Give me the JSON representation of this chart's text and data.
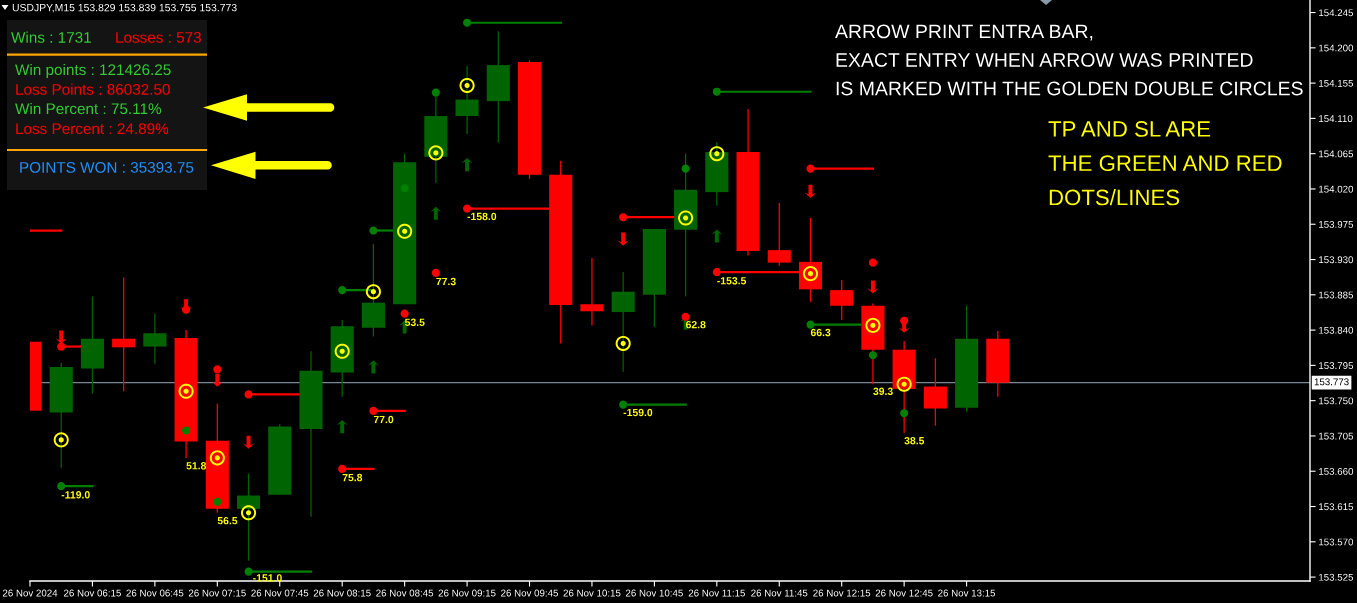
{
  "chart_data": [
    {
      "type": "candlestick",
      "title": "USDJPY,M15 153.829 153.839 153.755 153.773",
      "x": [
        "2024-11-26T05:45",
        "2024-11-26T06:00",
        "2024-11-26T06:15",
        "2024-11-26T06:30",
        "2024-11-26T06:45",
        "2024-11-26T07:00",
        "2024-11-26T07:15",
        "2024-11-26T07:30",
        "2024-11-26T07:45",
        "2024-11-26T08:00",
        "2024-11-26T08:15",
        "2024-11-26T08:30",
        "2024-11-26T08:45",
        "2024-11-26T09:00",
        "2024-11-26T09:15",
        "2024-11-26T09:30",
        "2024-11-26T09:45",
        "2024-11-26T10:00",
        "2024-11-26T10:15",
        "2024-11-26T10:30",
        "2024-11-26T10:45",
        "2024-11-26T11:00",
        "2024-11-26T11:15",
        "2024-11-26T11:30",
        "2024-11-26T11:45",
        "2024-11-26T12:00",
        "2024-11-26T12:15",
        "2024-11-26T12:30",
        "2024-11-26T12:45",
        "2024-11-26T13:00",
        "2024-11-26T13:15",
        "2024-11-26T13:30"
      ],
      "ohlc": [
        [
          153.825,
          153.825,
          153.737,
          153.737
        ],
        [
          153.735,
          153.798,
          153.664,
          153.793
        ],
        [
          153.791,
          153.883,
          153.759,
          153.829
        ],
        [
          153.829,
          153.907,
          153.762,
          153.818
        ],
        [
          153.819,
          153.861,
          153.797,
          153.836
        ],
        [
          153.83,
          153.84,
          153.677,
          153.698
        ],
        [
          153.699,
          153.746,
          153.607,
          153.612
        ],
        [
          153.612,
          153.657,
          153.546,
          153.629
        ],
        [
          153.63,
          153.72,
          153.63,
          153.717
        ],
        [
          153.714,
          153.813,
          153.602,
          153.788
        ],
        [
          153.786,
          153.853,
          153.755,
          153.845
        ],
        [
          153.843,
          153.95,
          153.832,
          153.875
        ],
        [
          153.873,
          154.065,
          153.873,
          154.054
        ],
        [
          154.061,
          154.138,
          154.028,
          154.113
        ],
        [
          154.113,
          154.177,
          154.09,
          154.134
        ],
        [
          154.132,
          154.221,
          154.079,
          154.178
        ],
        [
          154.182,
          154.184,
          154.033,
          154.038
        ],
        [
          154.038,
          154.056,
          153.823,
          153.872
        ],
        [
          153.873,
          153.932,
          153.846,
          153.864
        ],
        [
          153.863,
          153.914,
          153.787,
          153.889
        ],
        [
          153.885,
          153.969,
          153.844,
          153.969
        ],
        [
          153.968,
          154.065,
          153.883,
          154.019
        ],
        [
          154.016,
          154.08,
          153.999,
          154.067
        ],
        [
          154.067,
          154.122,
          153.935,
          153.941
        ],
        [
          153.942,
          154.002,
          153.922,
          153.926
        ],
        [
          153.927,
          153.983,
          153.876,
          153.892
        ],
        [
          153.891,
          153.904,
          153.853,
          153.871
        ],
        [
          153.871,
          153.874,
          153.771,
          153.815
        ],
        [
          153.815,
          153.826,
          153.709,
          153.765
        ],
        [
          153.768,
          153.804,
          153.718,
          153.74
        ],
        [
          153.741,
          153.871,
          153.736,
          153.829
        ],
        [
          153.829,
          153.839,
          153.755,
          153.773
        ]
      ],
      "colors": [
        "#ff0000",
        "#006400",
        "#006400",
        "#ff0000",
        "#006400",
        "#ff0000",
        "#ff0000",
        "#006400",
        "#006400",
        "#006400",
        "#006400",
        "#006400",
        "#006400",
        "#006400",
        "#006400",
        "#006400",
        "#ff0000",
        "#ff0000",
        "#ff0000",
        "#006400",
        "#006400",
        "#006400",
        "#006400",
        "#ff0000",
        "#ff0000",
        "#ff0000",
        "#ff0000",
        "#ff0000",
        "#ff0000",
        "#ff0000",
        "#006400",
        "#ff0000"
      ],
      "series": [
        {
          "type": "scatter",
          "marker": "circle",
          "color": "#ffff00",
          "x": [
            "2024-11-26T06:00",
            "2024-11-26T07:00",
            "2024-11-26T07:15",
            "2024-11-26T07:30",
            "2024-11-26T08:15",
            "2024-11-26T08:30",
            "2024-11-26T08:45",
            "2024-11-26T09:00",
            "2024-11-26T09:15",
            "2024-11-26T10:30",
            "2024-11-26T11:00",
            "2024-11-26T11:15",
            "2024-11-26T12:00",
            "2024-11-26T12:30",
            "2024-11-26T12:45"
          ],
          "values": [
            153.7,
            153.762,
            153.677,
            153.607,
            153.813,
            153.889,
            153.966,
            154.066,
            154.152,
            153.823,
            153.983,
            154.065,
            153.912,
            153.846,
            153.771
          ]
        },
        {
          "type": "scatter",
          "marker": "triangle",
          "color": "#ff0000",
          "x": [
            "2024-11-26T06:00",
            "2024-11-26T07:00",
            "2024-11-26T07:15",
            "2024-11-26T07:30",
            "2024-11-26T10:30",
            "2024-11-26T12:00",
            "2024-11-26T12:30",
            "2024-11-26T12:45"
          ],
          "values": [
            153.831,
            153.871,
            153.776,
            153.697,
            153.956,
            154.017,
            153.895,
            153.845
          ]
        },
        {
          "type": "scatter",
          "marker": "triangle",
          "color": "#006400",
          "x": [
            "2024-11-26T08:15",
            "2024-11-26T08:30",
            "2024-11-26T08:45",
            "2024-11-26T09:00",
            "2024-11-26T09:15",
            "2024-11-26T11:00",
            "2024-11-26T11:15"
          ],
          "values": [
            153.717,
            153.793,
            153.844,
            153.989,
            154.051,
            153.849,
            153.96
          ]
        },
        {
          "type": "scatter",
          "marker": "circle",
          "color": "#008000",
          "x": [
            "2024-11-26T06:00",
            "2024-11-26T07:00",
            "2024-11-26T07:15",
            "2024-11-26T07:30",
            "2024-11-26T08:15",
            "2024-11-26T08:30",
            "2024-11-26T08:45",
            "2024-11-26T09:00",
            "2024-11-26T09:15",
            "2024-11-26T10:30",
            "2024-11-26T11:00",
            "2024-11-26T11:15",
            "2024-11-26T12:00",
            "2024-11-26T12:30",
            "2024-11-26T12:45"
          ],
          "values": [
            153.641,
            153.712,
            153.621,
            153.532,
            153.891,
            153.967,
            154.021,
            154.143,
            154.232,
            153.745,
            154.046,
            154.144,
            153.847,
            153.808,
            153.734
          ]
        },
        {
          "type": "scatter",
          "marker": "circle",
          "color": "#ff0000",
          "x": [
            "2024-11-26T06:00",
            "2024-11-26T07:00",
            "2024-11-26T07:15",
            "2024-11-26T07:30",
            "2024-11-26T08:15",
            "2024-11-26T08:30",
            "2024-11-26T08:45",
            "2024-11-26T09:00",
            "2024-11-26T09:15",
            "2024-11-26T10:30",
            "2024-11-26T11:00",
            "2024-11-26T11:15",
            "2024-11-26T12:00",
            "2024-11-26T12:30",
            "2024-11-26T12:45"
          ],
          "values": [
            153.819,
            153.866,
            153.79,
            153.758,
            153.663,
            153.737,
            153.861,
            153.913,
            153.995,
            153.984,
            153.857,
            153.914,
            154.046,
            153.926,
            153.852
          ]
        },
        {
          "type": "line",
          "color": "#008000",
          "x": [
            "2024-11-26T06:00",
            "2024-11-26T06:15"
          ],
          "values": [
            153.641,
            153.641
          ]
        },
        {
          "type": "line",
          "color": "#008000",
          "x": [
            "2024-11-26T07:30",
            "2024-11-26T08:00"
          ],
          "values": [
            153.532,
            153.532
          ]
        },
        {
          "type": "line",
          "color": "#008000",
          "x": [
            "2024-11-26T08:15",
            "2024-11-26T08:30"
          ],
          "values": [
            153.891,
            153.891
          ]
        },
        {
          "type": "line",
          "color": "#008000",
          "x": [
            "2024-11-26T08:30",
            "2024-11-26T08:39"
          ],
          "values": [
            153.967,
            153.967
          ]
        },
        {
          "type": "line",
          "color": "#008000",
          "x": [
            "2024-11-26T09:15",
            "2024-11-26T10:00"
          ],
          "values": [
            154.232,
            154.232
          ]
        },
        {
          "type": "line",
          "color": "#008000",
          "x": [
            "2024-11-26T10:30",
            "2024-11-26T11:00"
          ],
          "values": [
            153.745,
            153.745
          ]
        },
        {
          "type": "line",
          "color": "#008000",
          "x": [
            "2024-11-26T11:15",
            "2024-11-26T12:00"
          ],
          "values": [
            154.144,
            154.144
          ]
        },
        {
          "type": "line",
          "color": "#008000",
          "x": [
            "2024-11-26T12:00",
            "2024-11-26T12:24"
          ],
          "values": [
            153.847,
            153.847
          ]
        },
        {
          "type": "line",
          "color": "#ff0000",
          "x": [
            "2024-11-26T05:45",
            "2024-11-26T06:00"
          ],
          "values": [
            153.967,
            153.967
          ]
        },
        {
          "type": "line",
          "color": "#ff0000",
          "x": [
            "2024-11-26T06:00",
            "2024-11-26T06:09"
          ],
          "values": [
            153.819,
            153.819
          ]
        },
        {
          "type": "line",
          "color": "#ff0000",
          "x": [
            "2024-11-26T07:30",
            "2024-11-26T07:54"
          ],
          "values": [
            153.758,
            153.758
          ]
        },
        {
          "type": "line",
          "color": "#ff0000",
          "x": [
            "2024-11-26T08:15",
            "2024-11-26T08:30"
          ],
          "values": [
            153.663,
            153.663
          ]
        },
        {
          "type": "line",
          "color": "#ff0000",
          "x": [
            "2024-11-26T08:30",
            "2024-11-26T08:45"
          ],
          "values": [
            153.737,
            153.737
          ]
        },
        {
          "type": "line",
          "color": "#ff0000",
          "x": [
            "2024-11-26T09:15",
            "2024-11-26T09:54"
          ],
          "values": [
            153.995,
            153.995
          ]
        },
        {
          "type": "line",
          "color": "#ff0000",
          "x": [
            "2024-11-26T10:30",
            "2024-11-26T10:54"
          ],
          "values": [
            153.984,
            153.984
          ]
        },
        {
          "type": "line",
          "color": "#ff0000",
          "x": [
            "2024-11-26T11:15",
            "2024-11-26T11:54"
          ],
          "values": [
            153.914,
            153.914
          ]
        },
        {
          "type": "line",
          "color": "#ff0000",
          "x": [
            "2024-11-26T12:00",
            "2024-11-26T12:30"
          ],
          "values": [
            154.046,
            154.046
          ]
        }
      ],
      "xlim": [
        "2024-11-26T05:45",
        "2024-11-26T16:00"
      ],
      "xticks": [
        {
          "value": "2024-11-26T05:45",
          "label": "26 Nov 2024"
        },
        {
          "value": "2024-11-26T06:15",
          "label": "26 Nov 06:15"
        },
        {
          "value": "2024-11-26T06:45",
          "label": "26 Nov 06:45"
        },
        {
          "value": "2024-11-26T07:15",
          "label": "26 Nov 07:15"
        },
        {
          "value": "2024-11-26T07:45",
          "label": "26 Nov 07:45"
        },
        {
          "value": "2024-11-26T08:15",
          "label": "26 Nov 08:15"
        },
        {
          "value": "2024-11-26T08:45",
          "label": "26 Nov 08:45"
        },
        {
          "value": "2024-11-26T09:15",
          "label": "26 Nov 09:15"
        },
        {
          "value": "2024-11-26T09:45",
          "label": "26 Nov 09:45"
        },
        {
          "value": "2024-11-26T10:15",
          "label": "26 Nov 10:15"
        },
        {
          "value": "2024-11-26T10:45",
          "label": "26 Nov 10:45"
        },
        {
          "value": "2024-11-26T11:15",
          "label": "26 Nov 11:15"
        },
        {
          "value": "2024-11-26T11:45",
          "label": "26 Nov 11:45"
        },
        {
          "value": "2024-11-26T12:15",
          "label": "26 Nov 12:15"
        },
        {
          "value": "2024-11-26T12:45",
          "label": "26 Nov 12:45"
        },
        {
          "value": "2024-11-26T13:15",
          "label": "26 Nov 13:15"
        }
      ],
      "ylim": [
        153.52,
        154.261
      ],
      "yticks": [
        154.245,
        {
          "value": 154.2,
          "label": "154.200"
        },
        154.155,
        {
          "value": 154.11,
          "label": "154.110"
        },
        154.065,
        {
          "value": 154.02,
          "label": "154.020"
        },
        153.975,
        {
          "value": 153.93,
          "label": "153.930"
        },
        153.885,
        {
          "value": 153.84,
          "label": "153.840"
        },
        153.795,
        {
          "value": 153.75,
          "label": "153.750"
        },
        153.705,
        {
          "value": 153.66,
          "label": "153.660"
        },
        153.615,
        {
          "value": 153.57,
          "label": "153.570"
        },
        153.525
      ],
      "ref_lines": [
        {
          "axis": "y",
          "value": 153.773,
          "label": "153.773",
          "color": "#778899"
        }
      ],
      "annotations": [
        "ARROW PRINT ENTRA BAR,\nEXACT ENTRY WHEN ARROW WAS PRINTED\nIS MARKED WITH THE GOLDEN DOUBLE CIRCLES",
        "TP AND SL ARE\nTHE GREEN AND RED\nDOTS/LINES",
        {
          "text": "-119.0",
          "x": "2024-11-26T06:00",
          "y": 153.635
        },
        {
          "text": "51.8",
          "x": "2024-11-26T07:00",
          "y": 153.672
        },
        {
          "text": "56.5",
          "x": "2024-11-26T07:15",
          "y": 153.602
        },
        {
          "text": "-151.0",
          "x": "2024-11-26T07:32",
          "y": 153.529
        },
        {
          "text": "75.8",
          "x": "2024-11-26T08:15",
          "y": 153.657
        },
        {
          "text": "77.0",
          "x": "2024-11-26T08:30",
          "y": 153.731
        },
        {
          "text": "53.5",
          "x": "2024-11-26T08:45",
          "y": 153.855
        },
        {
          "text": "77.3",
          "x": "2024-11-26T09:00",
          "y": 153.907
        },
        {
          "text": "-158.0",
          "x": "2024-11-26T09:15",
          "y": 153.99
        },
        {
          "text": "-159.0",
          "x": "2024-11-26T10:30",
          "y": 153.74
        },
        {
          "text": "62.8",
          "x": "2024-11-26T11:00",
          "y": 153.852
        },
        {
          "text": "-153.5",
          "x": "2024-11-26T11:15",
          "y": 153.908
        },
        {
          "text": "66.3",
          "x": "2024-11-26T12:00",
          "y": 153.842
        },
        {
          "text": "39.3",
          "x": "2024-11-26T12:30",
          "y": 153.767
        },
        {
          "text": "38.5",
          "x": "2024-11-26T12:45",
          "y": 153.704
        }
      ]
    },
    {
      "type": "other",
      "annotations": [
        "Wins : 1731",
        "Losses : 573",
        "Win points : 121426.25",
        "Loss Points : 86032.50",
        "Win Percent : 75.11%",
        "Loss Percent : 24.89%",
        "POINTS WON : 35393.75"
      ]
    }
  ]
}
